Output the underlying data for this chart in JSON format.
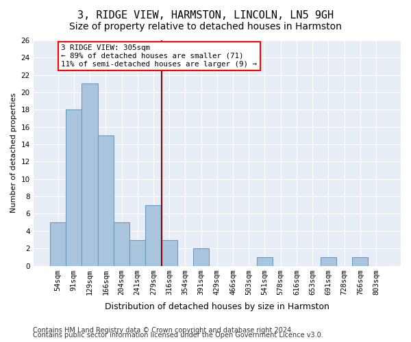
{
  "title": "3, RIDGE VIEW, HARMSTON, LINCOLN, LN5 9GH",
  "subtitle": "Size of property relative to detached houses in Harmston",
  "xlabel": "Distribution of detached houses by size in Harmston",
  "ylabel": "Number of detached properties",
  "categories": [
    "54sqm",
    "91sqm",
    "129sqm",
    "166sqm",
    "204sqm",
    "241sqm",
    "279sqm",
    "316sqm",
    "354sqm",
    "391sqm",
    "429sqm",
    "466sqm",
    "503sqm",
    "541sqm",
    "578sqm",
    "616sqm",
    "653sqm",
    "691sqm",
    "728sqm",
    "766sqm",
    "803sqm"
  ],
  "values": [
    5,
    18,
    21,
    15,
    5,
    3,
    7,
    3,
    0,
    2,
    0,
    0,
    0,
    1,
    0,
    0,
    0,
    1,
    0,
    1,
    0
  ],
  "bar_color": "#aac4de",
  "bar_edge_color": "#6a9abf",
  "vline_color": "#8b0000",
  "ylim": [
    0,
    26
  ],
  "yticks": [
    0,
    2,
    4,
    6,
    8,
    10,
    12,
    14,
    16,
    18,
    20,
    22,
    24,
    26
  ],
  "annotation_text": "3 RIDGE VIEW: 305sqm\n← 89% of detached houses are smaller (71)\n11% of semi-detached houses are larger (9) →",
  "annotation_box_color": "white",
  "annotation_box_edge_color": "red",
  "bg_color": "#e8eef5",
  "footer_line1": "Contains HM Land Registry data © Crown copyright and database right 2024.",
  "footer_line2": "Contains public sector information licensed under the Open Government Licence v3.0.",
  "title_fontsize": 11,
  "subtitle_fontsize": 10,
  "tick_fontsize": 7.5,
  "ylabel_fontsize": 8,
  "xlabel_fontsize": 9,
  "footer_fontsize": 7
}
